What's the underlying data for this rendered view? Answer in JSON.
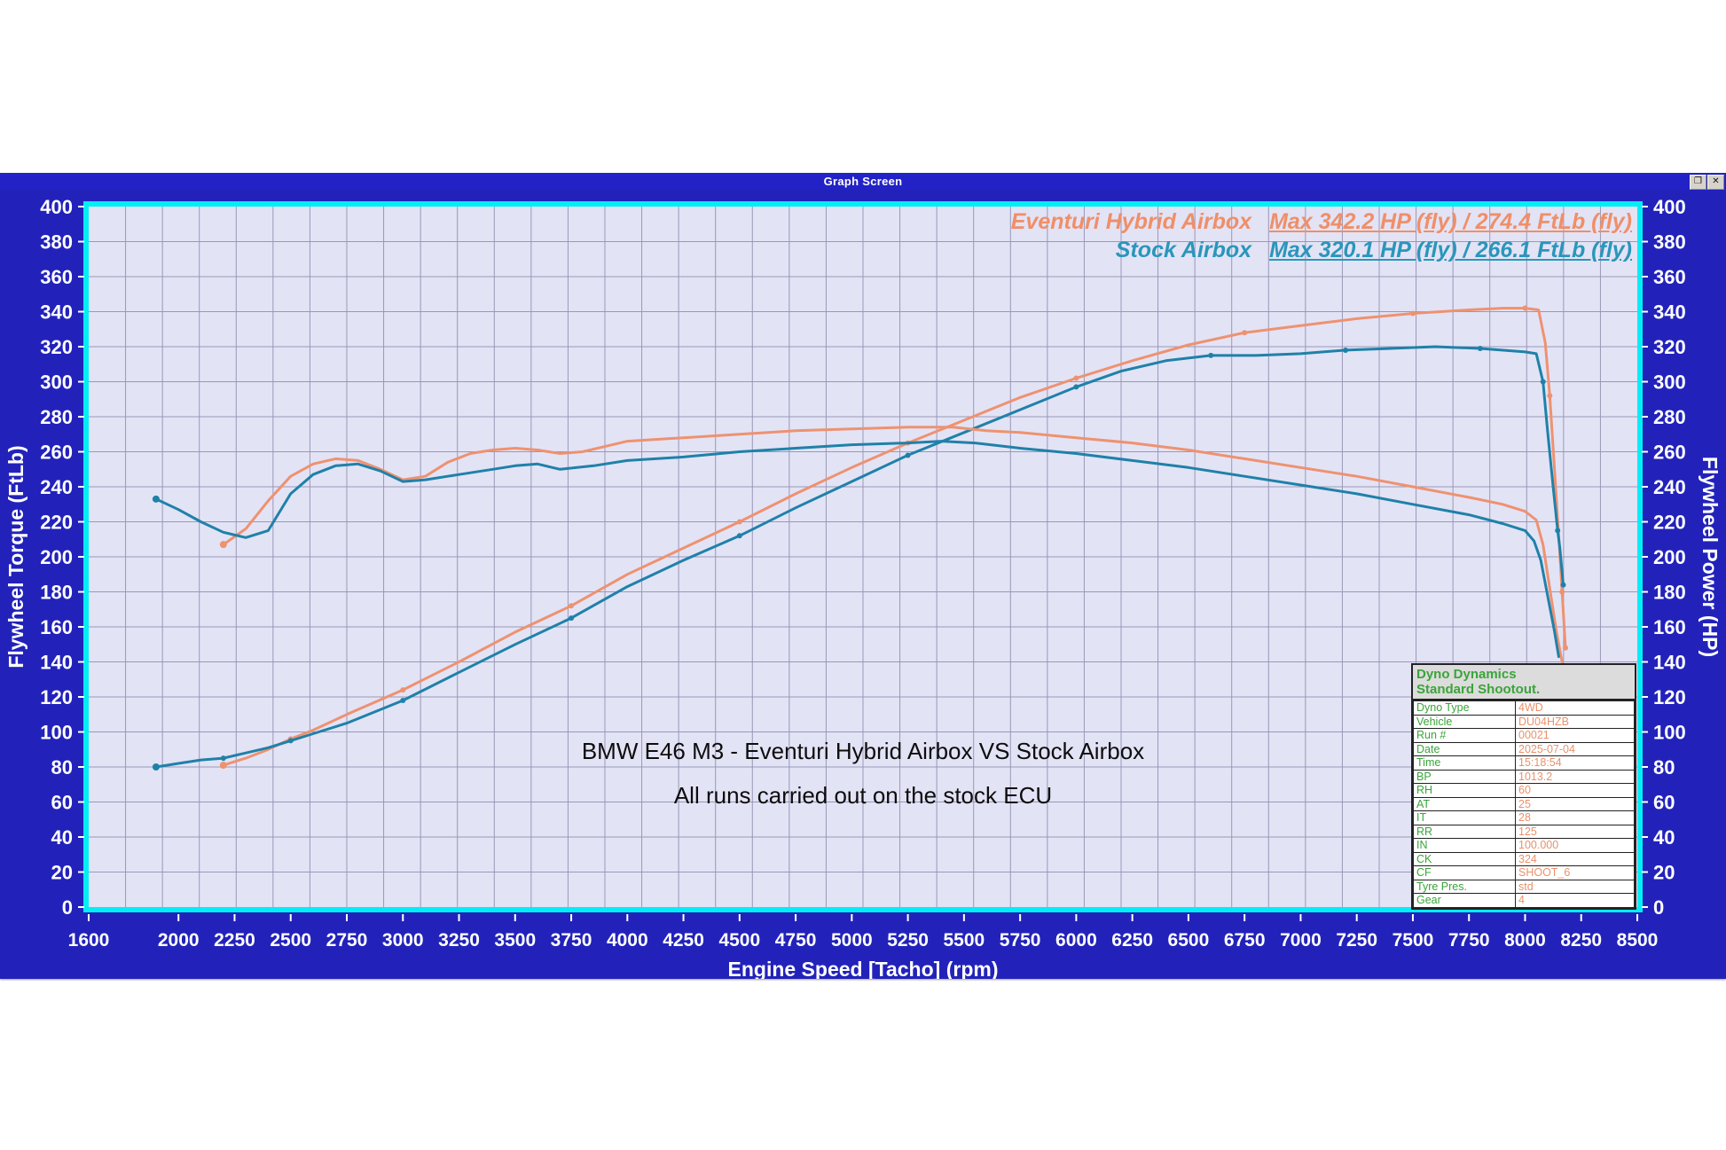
{
  "window": {
    "title": "Graph Screen",
    "restore_button": "❐",
    "close_button": "✕"
  },
  "legend": {
    "rows": [
      {
        "name": "Eventuri Hybrid Airbox",
        "value": "Max 342.2 HP (fly) / 274.4 FtLb (fly)",
        "color": "#ef8f68"
      },
      {
        "name": "Stock Airbox",
        "value": "Max 320.1 HP (fly) / 266.1 FtLb (fly)",
        "color": "#2a96ba"
      }
    ]
  },
  "annotations": {
    "line1": "BMW E46 M3 - Eventuri Hybrid Airbox VS Stock Airbox",
    "line2": "All runs carried out on the stock ECU"
  },
  "info_table": {
    "header_line1": "Dyno Dynamics",
    "header_line2": "Standard Shootout.",
    "rows": [
      {
        "label": "Dyno Type",
        "value": "4WD"
      },
      {
        "label": "Vehicle",
        "value": "DU04HZB"
      },
      {
        "label": "Run #",
        "value": "00021"
      },
      {
        "label": "Date",
        "value": "2025-07-04"
      },
      {
        "label": "Time",
        "value": "15:18:54"
      },
      {
        "label": "BP",
        "value": "1013.2"
      },
      {
        "label": "RH",
        "value": "60"
      },
      {
        "label": "AT",
        "value": "25"
      },
      {
        "label": "IT",
        "value": "28"
      },
      {
        "label": "RR",
        "value": "125"
      },
      {
        "label": "IN",
        "value": "100.000"
      },
      {
        "label": "CK",
        "value": "324"
      },
      {
        "label": "CF",
        "value": "SHOOT_6"
      },
      {
        "label": "Tyre Pres.",
        "value": "std"
      },
      {
        "label": "Gear",
        "value": "4"
      }
    ]
  },
  "chart_data": {
    "type": "line",
    "x_axis": {
      "label": "Engine Speed [Tacho] (rpm)",
      "min": 1600,
      "max": 8500,
      "tick_labels": [
        1600,
        2000,
        2250,
        2500,
        2750,
        3000,
        3250,
        3500,
        3750,
        4000,
        4250,
        4500,
        4750,
        5000,
        5250,
        5500,
        5750,
        6000,
        6250,
        6500,
        6750,
        7000,
        7250,
        7500,
        7750,
        8000,
        8250,
        8500
      ]
    },
    "y_axis_left": {
      "label": "Flywheel Torque (FtLb)",
      "min": 0,
      "max": 400,
      "step": 20
    },
    "y_axis_right": {
      "label": "Flywheel Power (HP)",
      "min": 0,
      "max": 400,
      "step": 20
    },
    "grid": {
      "x_divisions": 42,
      "y_divisions": 20,
      "color": "#9898b8",
      "background": "#e3e3f6",
      "border_color": "#00eef6"
    },
    "legend_position": "top-right",
    "series": [
      {
        "name": "eventuri-power",
        "label": "Eventuri Hybrid Airbox Power (HP)",
        "color": "#ee9270",
        "markers": true,
        "max": 342.2,
        "points": [
          [
            2200,
            81
          ],
          [
            2300,
            85
          ],
          [
            2400,
            90
          ],
          [
            2500,
            96
          ],
          [
            2600,
            101
          ],
          [
            2750,
            110
          ],
          [
            3000,
            124
          ],
          [
            3250,
            140
          ],
          [
            3500,
            157
          ],
          [
            3750,
            172
          ],
          [
            4000,
            190
          ],
          [
            4250,
            205
          ],
          [
            4500,
            220
          ],
          [
            4750,
            236
          ],
          [
            5000,
            251
          ],
          [
            5250,
            265
          ],
          [
            5500,
            278
          ],
          [
            5750,
            291
          ],
          [
            6000,
            302
          ],
          [
            6250,
            312
          ],
          [
            6500,
            321
          ],
          [
            6750,
            328
          ],
          [
            7000,
            332
          ],
          [
            7250,
            336
          ],
          [
            7500,
            339
          ],
          [
            7750,
            341
          ],
          [
            7900,
            342
          ],
          [
            8000,
            342
          ],
          [
            8060,
            341
          ],
          [
            8090,
            322
          ],
          [
            8110,
            292
          ],
          [
            8130,
            252
          ],
          [
            8150,
            212
          ],
          [
            8165,
            180
          ],
          [
            8180,
            148
          ]
        ]
      },
      {
        "name": "stock-power",
        "label": "Stock Airbox Power (HP)",
        "color": "#1f81a8",
        "markers": true,
        "max": 320.1,
        "points": [
          [
            1900,
            80
          ],
          [
            2000,
            82
          ],
          [
            2100,
            84
          ],
          [
            2200,
            85
          ],
          [
            2300,
            88
          ],
          [
            2400,
            91
          ],
          [
            2500,
            95
          ],
          [
            2600,
            99
          ],
          [
            2750,
            105
          ],
          [
            3000,
            118
          ],
          [
            3250,
            134
          ],
          [
            3500,
            150
          ],
          [
            3750,
            165
          ],
          [
            4000,
            183
          ],
          [
            4250,
            198
          ],
          [
            4500,
            212
          ],
          [
            4750,
            228
          ],
          [
            5000,
            243
          ],
          [
            5250,
            258
          ],
          [
            5500,
            271
          ],
          [
            5750,
            284
          ],
          [
            6000,
            297
          ],
          [
            6200,
            306
          ],
          [
            6400,
            312
          ],
          [
            6600,
            315
          ],
          [
            6800,
            315
          ],
          [
            7000,
            316
          ],
          [
            7200,
            318
          ],
          [
            7400,
            319
          ],
          [
            7600,
            320
          ],
          [
            7800,
            319
          ],
          [
            8000,
            317
          ],
          [
            8050,
            316
          ],
          [
            8080,
            300
          ],
          [
            8100,
            272
          ],
          [
            8125,
            240
          ],
          [
            8145,
            215
          ],
          [
            8155,
            205
          ],
          [
            8170,
            184
          ]
        ]
      },
      {
        "name": "eventuri-torque",
        "label": "Eventuri Hybrid Airbox Torque (FtLb)",
        "color": "#ee9270",
        "markers": false,
        "max": 274.4,
        "points": [
          [
            2200,
            207
          ],
          [
            2300,
            216
          ],
          [
            2400,
            232
          ],
          [
            2500,
            246
          ],
          [
            2600,
            253
          ],
          [
            2700,
            256
          ],
          [
            2800,
            255
          ],
          [
            2900,
            250
          ],
          [
            3000,
            244
          ],
          [
            3100,
            246
          ],
          [
            3200,
            254
          ],
          [
            3300,
            259
          ],
          [
            3400,
            261
          ],
          [
            3500,
            262
          ],
          [
            3600,
            261
          ],
          [
            3700,
            259
          ],
          [
            3800,
            260
          ],
          [
            3900,
            263
          ],
          [
            4000,
            266
          ],
          [
            4250,
            268
          ],
          [
            4500,
            270
          ],
          [
            4750,
            272
          ],
          [
            5000,
            273
          ],
          [
            5250,
            274
          ],
          [
            5450,
            274
          ],
          [
            5600,
            272
          ],
          [
            5750,
            271
          ],
          [
            6000,
            268
          ],
          [
            6250,
            265
          ],
          [
            6500,
            261
          ],
          [
            6750,
            256
          ],
          [
            7000,
            251
          ],
          [
            7250,
            246
          ],
          [
            7500,
            240
          ],
          [
            7750,
            234
          ],
          [
            7900,
            230
          ],
          [
            8000,
            226
          ],
          [
            8050,
            221
          ],
          [
            8080,
            207
          ],
          [
            8110,
            182
          ],
          [
            8140,
            157
          ],
          [
            8165,
            140
          ]
        ]
      },
      {
        "name": "stock-torque",
        "label": "Stock Airbox Torque (FtLb)",
        "color": "#1f81a8",
        "markers": false,
        "max": 266.1,
        "points": [
          [
            1900,
            233
          ],
          [
            2000,
            227
          ],
          [
            2100,
            220
          ],
          [
            2200,
            214
          ],
          [
            2300,
            211
          ],
          [
            2400,
            215
          ],
          [
            2500,
            236
          ],
          [
            2600,
            247
          ],
          [
            2700,
            252
          ],
          [
            2800,
            253
          ],
          [
            2900,
            249
          ],
          [
            3000,
            243
          ],
          [
            3100,
            244
          ],
          [
            3250,
            247
          ],
          [
            3400,
            250
          ],
          [
            3500,
            252
          ],
          [
            3600,
            253
          ],
          [
            3700,
            250
          ],
          [
            3850,
            252
          ],
          [
            4000,
            255
          ],
          [
            4250,
            257
          ],
          [
            4500,
            260
          ],
          [
            4750,
            262
          ],
          [
            5000,
            264
          ],
          [
            5250,
            265
          ],
          [
            5400,
            266
          ],
          [
            5550,
            265
          ],
          [
            5750,
            262
          ],
          [
            6000,
            259
          ],
          [
            6250,
            255
          ],
          [
            6500,
            251
          ],
          [
            6750,
            246
          ],
          [
            7000,
            241
          ],
          [
            7250,
            236
          ],
          [
            7500,
            230
          ],
          [
            7750,
            224
          ],
          [
            7900,
            219
          ],
          [
            8000,
            215
          ],
          [
            8040,
            209
          ],
          [
            8070,
            198
          ],
          [
            8100,
            178
          ],
          [
            8130,
            158
          ],
          [
            8150,
            143
          ]
        ]
      }
    ]
  }
}
